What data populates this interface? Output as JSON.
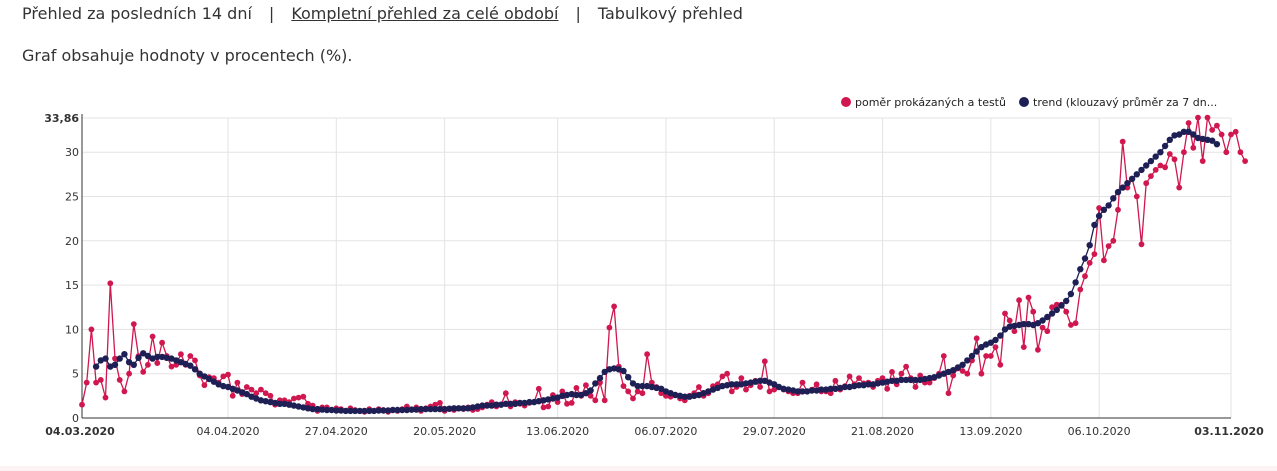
{
  "nav": {
    "items": [
      {
        "label": "Přehled za posledních 14 dní",
        "active": false
      },
      {
        "label": "Kompletní přehled za celé období",
        "active": true
      },
      {
        "label": "Tabulkový přehled",
        "active": false
      }
    ],
    "separator": "|"
  },
  "note": "Graf obsahuje hodnoty v procentech (%).",
  "chart_data": {
    "type": "line",
    "title": "",
    "xlabel": "",
    "ylabel": "",
    "ylim": [
      0,
      33.86
    ],
    "y_max_label": "33,86",
    "y_ticks": [
      0,
      5,
      10,
      15,
      20,
      25,
      30
    ],
    "x_range": [
      "2020-03-04",
      "2020-11-03"
    ],
    "x_ticks": [
      {
        "date": "2020-03-04",
        "label": "04.03.2020",
        "bold": true
      },
      {
        "date": "2020-04-04",
        "label": "04.04.2020",
        "bold": false
      },
      {
        "date": "2020-04-27",
        "label": "27.04.2020",
        "bold": false
      },
      {
        "date": "2020-05-20",
        "label": "20.05.2020",
        "bold": false
      },
      {
        "date": "2020-06-13",
        "label": "13.06.2020",
        "bold": false
      },
      {
        "date": "2020-07-06",
        "label": "06.07.2020",
        "bold": false
      },
      {
        "date": "2020-07-29",
        "label": "29.07.2020",
        "bold": false
      },
      {
        "date": "2020-08-21",
        "label": "21.08.2020",
        "bold": false
      },
      {
        "date": "2020-09-13",
        "label": "13.09.2020",
        "bold": false
      },
      {
        "date": "2020-10-06",
        "label": "06.10.2020",
        "bold": false
      },
      {
        "date": "2020-11-03",
        "label": "03.11.2020",
        "bold": true
      }
    ],
    "grid": true,
    "legend_position": "top-right",
    "series": [
      {
        "name": "poměr prokázaných a testů",
        "color": "#d0174f",
        "start_date": "2020-03-04",
        "values": [
          1.5,
          4,
          10,
          4,
          4.3,
          2.3,
          15.2,
          6.7,
          4.3,
          3,
          5,
          10.6,
          7,
          5.2,
          6,
          9.2,
          6.2,
          8.5,
          7,
          5.8,
          6,
          7.2,
          6,
          7,
          6.5,
          4.8,
          3.7,
          4.6,
          4.5,
          4,
          4.7,
          4.9,
          2.5,
          4,
          2.7,
          3.5,
          3.2,
          2.8,
          3.2,
          2.8,
          2.5,
          1.5,
          2,
          2,
          1.8,
          2.2,
          2.3,
          2.4,
          1.6,
          1.4,
          0.8,
          1.2,
          1.2,
          0.9,
          1.1,
          1.0,
          0.8,
          1.1,
          0.9,
          0.8,
          0.7,
          1.0,
          0.8,
          1.0,
          0.9,
          0.7,
          0.9,
          0.8,
          1.0,
          1.3,
          0.9,
          1.2,
          0.8,
          1.1,
          1.3,
          1.5,
          1.7,
          0.8,
          1.0,
          0.9,
          1.1,
          1.0,
          1.2,
          0.9,
          1.0,
          1.2,
          1.5,
          1.8,
          1.3,
          1.5,
          2.8,
          1.3,
          1.8,
          1.6,
          1.4,
          1.7,
          1.8,
          3.3,
          1.2,
          1.3,
          2.6,
          1.8,
          3.0,
          1.6,
          1.7,
          3.4,
          2.5,
          3.7,
          2.5,
          2.0,
          4.0,
          2.0,
          10.2,
          12.6,
          5.8,
          3.6,
          3.0,
          2.2,
          3.0,
          2.8,
          7.2,
          4.0,
          3.5,
          2.8,
          2.5,
          2.4,
          2.6,
          2.2,
          2.0,
          2.5,
          2.8,
          3.5,
          2.5,
          2.8,
          3.6,
          3.8,
          4.7,
          5.0,
          3.0,
          3.5,
          4.5,
          3.2,
          3.7,
          4.2,
          3.5,
          6.4,
          3.0,
          3.2,
          3.5,
          3.2,
          3.0,
          2.8,
          2.8,
          4.0,
          3.0,
          3.2,
          3.8,
          3.0,
          3.0,
          2.8,
          4.2,
          3.2,
          3.6,
          4.7,
          3.8,
          4.5,
          3.9,
          4.0,
          3.5,
          4.2,
          4.5,
          3.3,
          5.2,
          3.8,
          5.0,
          5.8,
          4.5,
          3.5,
          4.8,
          4.0,
          4.0,
          4.5,
          5.0,
          7.0,
          2.8,
          4.8,
          5.6,
          5.3,
          5.0,
          6.5,
          9.0,
          5.0,
          7.0,
          7.0,
          8.0,
          6.0,
          11.8,
          11.0,
          9.8,
          13.3,
          8.0,
          13.6,
          12.0,
          7.7,
          10.2,
          9.8,
          12.5,
          12.8,
          12.8,
          12.0,
          10.5,
          10.7,
          14.5,
          16.0,
          17.5,
          18.5,
          23.7,
          17.8,
          19.4,
          20.0,
          23.5,
          31.2,
          26,
          27,
          25,
          19.6,
          26.5,
          27.3,
          28,
          28.5,
          28.3,
          29.8,
          29.2,
          26.0,
          30.0,
          33.3,
          30.5,
          33.9,
          29.0,
          33.9,
          32.5,
          33.0,
          32.0,
          30.0,
          32.0,
          32.3,
          30.0,
          29.0
        ]
      },
      {
        "name": "trend (klouzavý průměr za 7 dn...",
        "color": "#1e1f55",
        "start_date": "2020-03-07",
        "values": [
          5.8,
          6.5,
          6.7,
          5.8,
          6.0,
          6.7,
          7.2,
          6.3,
          6.0,
          6.8,
          7.3,
          7.0,
          6.7,
          6.9,
          6.9,
          6.8,
          6.7,
          6.5,
          6.3,
          6.1,
          5.9,
          5.5,
          5.0,
          4.7,
          4.4,
          4.1,
          3.8,
          3.6,
          3.5,
          3.3,
          3.1,
          2.9,
          2.7,
          2.4,
          2.2,
          2.0,
          1.9,
          1.8,
          1.7,
          1.6,
          1.6,
          1.5,
          1.4,
          1.3,
          1.2,
          1.1,
          1.0,
          1.0,
          0.95,
          0.9,
          0.9,
          0.85,
          0.85,
          0.8,
          0.8,
          0.8,
          0.8,
          0.8,
          0.8,
          0.8,
          0.85,
          0.85,
          0.85,
          0.9,
          0.9,
          0.9,
          0.9,
          0.95,
          0.95,
          1.0,
          1.0,
          1.0,
          1.0,
          1.0,
          1.0,
          1.05,
          1.1,
          1.1,
          1.1,
          1.1,
          1.2,
          1.3,
          1.4,
          1.4,
          1.4,
          1.5,
          1.5,
          1.6,
          1.6,
          1.6,
          1.7,
          1.7,
          1.8,
          1.8,
          1.9,
          2.0,
          2.1,
          2.2,
          2.3,
          2.5,
          2.6,
          2.7,
          2.6,
          2.6,
          2.8,
          3.1,
          3.9,
          4.5,
          5.2,
          5.5,
          5.6,
          5.5,
          5.3,
          4.6,
          3.9,
          3.6,
          3.6,
          3.6,
          3.5,
          3.4,
          3.3,
          3.0,
          2.8,
          2.6,
          2.5,
          2.4,
          2.4,
          2.5,
          2.6,
          2.8,
          3.0,
          3.2,
          3.4,
          3.6,
          3.7,
          3.8,
          3.8,
          3.8,
          3.9,
          4.0,
          4.1,
          4.2,
          4.2,
          4.0,
          3.8,
          3.5,
          3.3,
          3.2,
          3.1,
          3.0,
          3.0,
          3.0,
          3.1,
          3.1,
          3.2,
          3.2,
          3.3,
          3.3,
          3.4,
          3.5,
          3.5,
          3.6,
          3.7,
          3.7,
          3.8,
          3.8,
          3.9,
          4.0,
          4.1,
          4.2,
          4.2,
          4.3,
          4.3,
          4.3,
          4.3,
          4.3,
          4.4,
          4.5,
          4.6,
          4.8,
          5.0,
          5.2,
          5.4,
          5.7,
          6.0,
          6.5,
          7.0,
          7.5,
          8.0,
          8.3,
          8.5,
          8.8,
          9.3,
          10.0,
          10.3,
          10.4,
          10.5,
          10.6,
          10.6,
          10.5,
          10.7,
          11.0,
          11.4,
          11.8,
          12.2,
          12.7,
          13.2,
          14.0,
          15.3,
          16.8,
          18.0,
          19.5,
          21.8,
          22.8,
          23.5,
          24.0,
          24.8,
          25.5,
          26.0,
          26.5,
          27.0,
          27.5,
          28.0,
          28.5,
          29.0,
          29.5,
          30.0,
          30.7,
          31.4,
          31.9,
          32.0,
          32.3,
          32.3,
          32.0,
          31.6,
          31.5,
          31.4,
          31.3,
          30.9
        ]
      }
    ]
  }
}
